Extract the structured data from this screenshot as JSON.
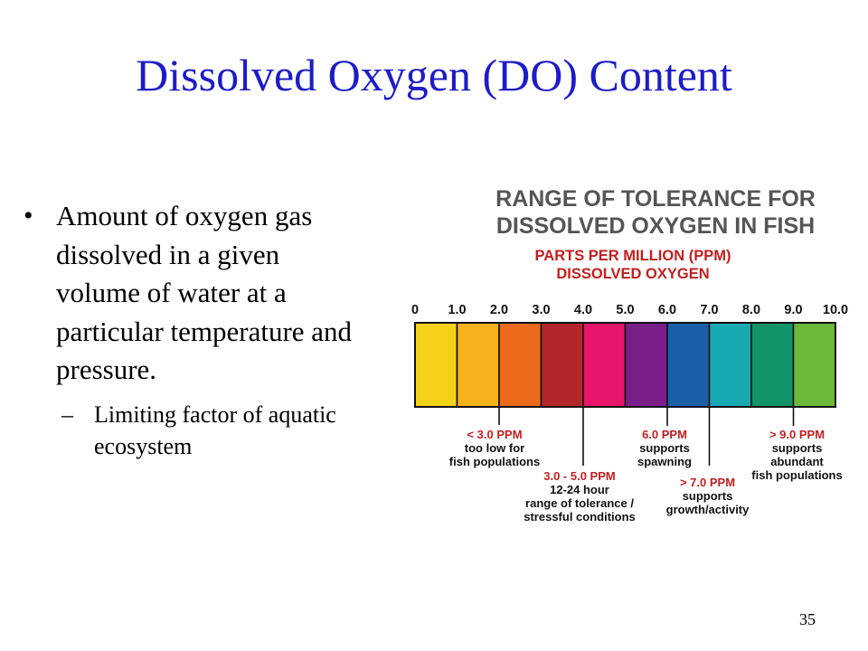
{
  "slide": {
    "title": "Dissolved Oxygen (DO) Content",
    "bullet": {
      "symbol": "•",
      "text": "Amount of oxygen gas dissolved in a given volume of water at a particular temperature and pressure."
    },
    "sub_bullet": {
      "symbol": "–",
      "text": "Limiting factor of aquatic ecosystem"
    },
    "page_number": "35"
  },
  "figure": {
    "title_line1": "RANGE OF TOLERANCE FOR",
    "title_line2": "DISSOLVED OXYGEN IN FISH",
    "subtitle_line1": "PARTS PER MILLION (PPM)",
    "subtitle_line2": "DISSOLVED OXYGEN",
    "title_color": "#555555",
    "subtitle_color": "#c41e1e",
    "scale_labels": [
      "0",
      "1.0",
      "2.0",
      "3.0",
      "4.0",
      "5.0",
      "6.0",
      "7.0",
      "8.0",
      "9.0",
      "10.0"
    ],
    "bands": [
      {
        "from": 0,
        "to": 1,
        "color": "#f5d21a"
      },
      {
        "from": 1,
        "to": 2,
        "color": "#f6b21c"
      },
      {
        "from": 2,
        "to": 3,
        "color": "#ec6a1a"
      },
      {
        "from": 3,
        "to": 4,
        "color": "#b3262c"
      },
      {
        "from": 4,
        "to": 5,
        "color": "#e8166a"
      },
      {
        "from": 5,
        "to": 6,
        "color": "#7a1e8a"
      },
      {
        "from": 6,
        "to": 7,
        "color": "#1a5fa8"
      },
      {
        "from": 7,
        "to": 8,
        "color": "#17aab2"
      },
      {
        "from": 8,
        "to": 9,
        "color": "#12946a"
      },
      {
        "from": 9,
        "to": 10,
        "color": "#6cb83a"
      }
    ],
    "annotations": [
      {
        "at": 2.0,
        "lines": [
          "< 3.0 PPM",
          "too low for",
          "fish populations"
        ]
      },
      {
        "at": 4.0,
        "lines": [
          "3.0 - 5.0 PPM",
          "12-24 hour",
          "range of tolerance /",
          "stressful conditions"
        ]
      },
      {
        "at": 6.0,
        "lines": [
          "6.0 PPM",
          "supports",
          "spawning"
        ]
      },
      {
        "at": 7.0,
        "lines": [
          "> 7.0 PPM",
          "supports",
          "growth/activity"
        ]
      },
      {
        "at": 9.0,
        "lines": [
          "> 9.0 PPM",
          "supports",
          "abundant",
          "fish populations"
        ]
      }
    ],
    "first_line_color": "#c41e1e",
    "body_line_color": "#111111"
  }
}
